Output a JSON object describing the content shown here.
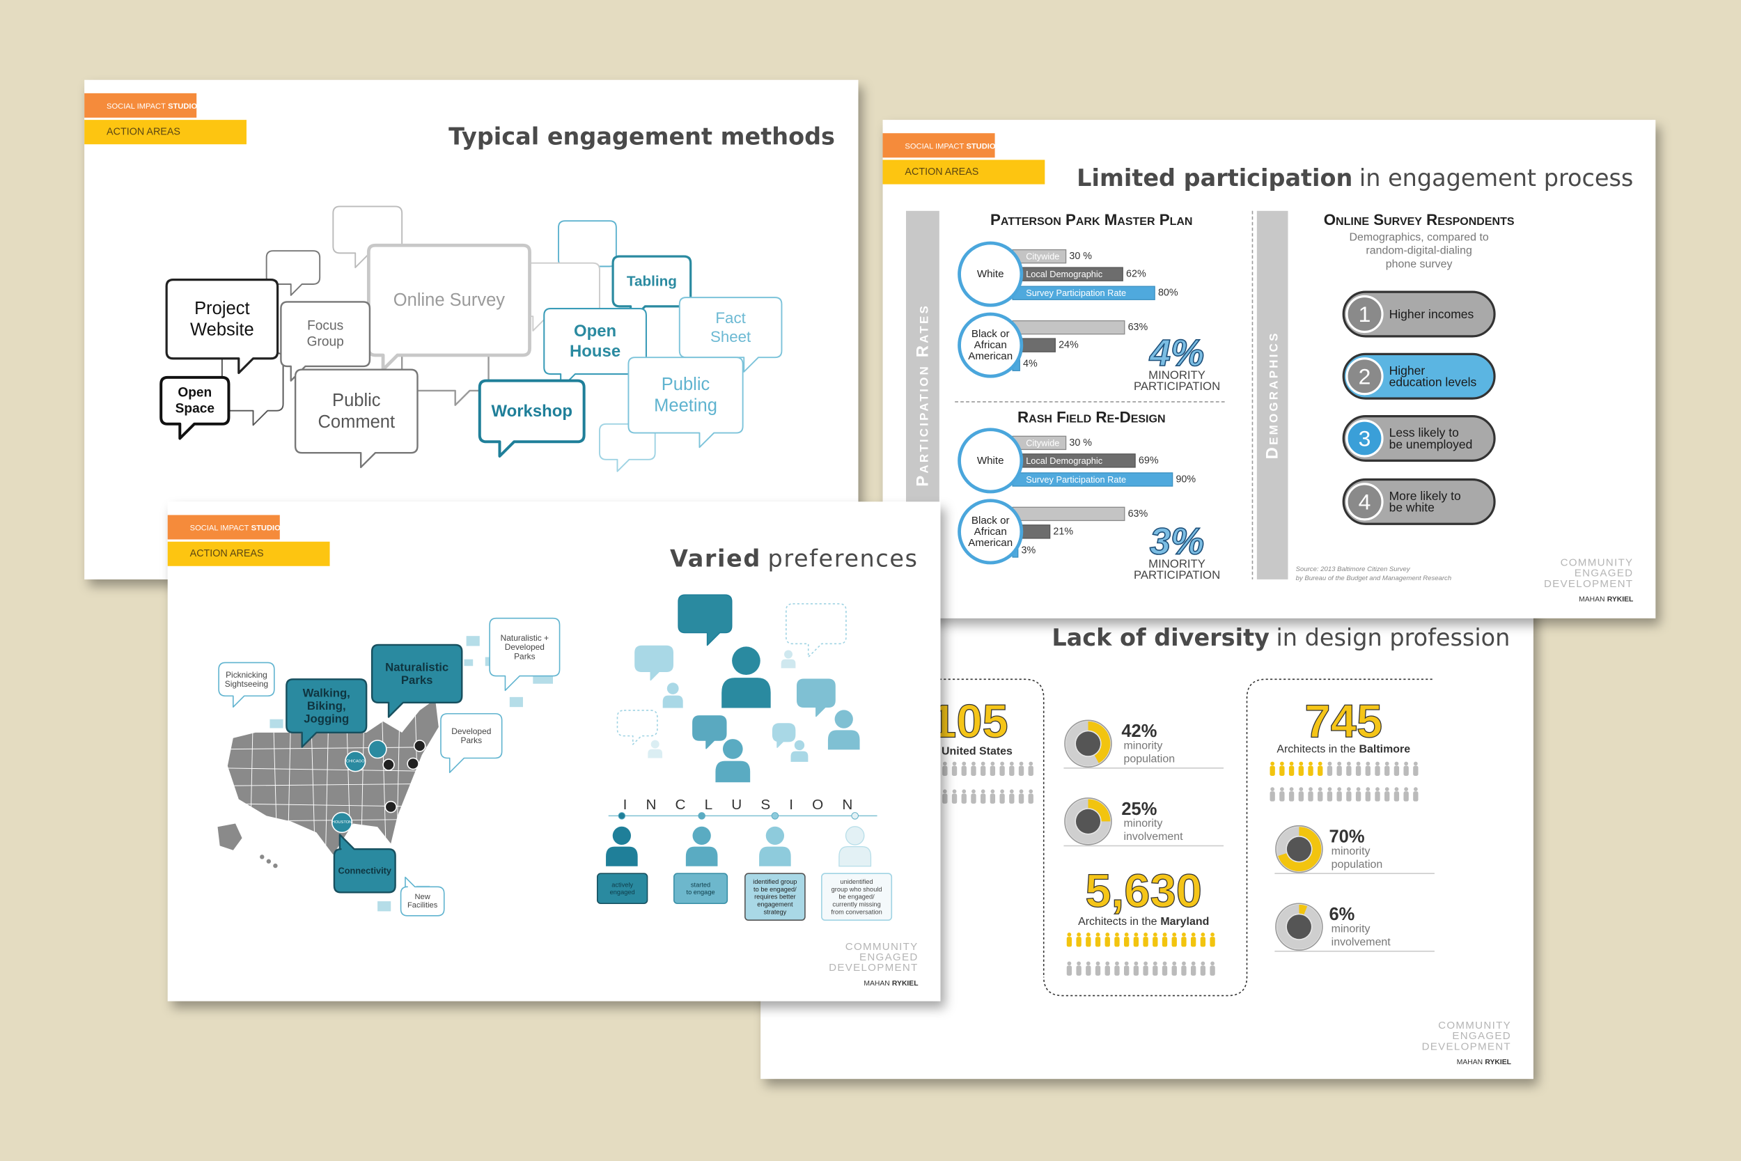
{
  "brand": {
    "studio_prefix": "SOCIAL IMPACT",
    "studio_bold": "STUDIO",
    "section": "ACTION AREAS",
    "logo_lines": [
      "COMMUNITY",
      "ENGAGED",
      "DEVELOPMENT"
    ],
    "firm_prefix": "MAHAN",
    "firm_bold": "RYKIEL"
  },
  "engagement_methods": {
    "title": "Typical engagement methods",
    "methods": [
      {
        "lines": [
          "Online Survey"
        ]
      },
      {
        "lines": [
          "Tabling"
        ]
      },
      {
        "lines": [
          "Fact",
          "Sheet"
        ]
      },
      {
        "lines": [
          "Open",
          "House"
        ]
      },
      {
        "lines": [
          "Public",
          "Meeting"
        ]
      },
      {
        "lines": [
          "Focus",
          "Group"
        ]
      },
      {
        "lines": [
          "Project",
          "Website"
        ]
      },
      {
        "lines": [
          "Public",
          "Comment"
        ]
      },
      {
        "lines": [
          "Open",
          "Space"
        ]
      },
      {
        "lines": [
          "Workshop"
        ]
      }
    ]
  },
  "limited_participation": {
    "title_bold": "Limited participation",
    "title_rest": "in engagement process",
    "side_label": "Participation Rates",
    "projects": [
      {
        "name": "Patterson Park Master Plan",
        "groups": [
          {
            "name": [
              "White"
            ],
            "bars": [
              {
                "label": "Citywide",
                "value": 30,
                "value_label": "30 %"
              },
              {
                "label": "Local Demographic",
                "value": 62,
                "value_label": "62%"
              },
              {
                "label": "Survey Participation Rate",
                "value": 80,
                "value_label": "80%"
              }
            ]
          },
          {
            "name": [
              "Black or",
              "African",
              "American"
            ],
            "bars": [
              {
                "value": 63,
                "value_label": "63%"
              },
              {
                "value": 24,
                "value_label": "24%"
              },
              {
                "value": 4,
                "value_label": "4%"
              }
            ]
          }
        ],
        "minority": {
          "label": "4%",
          "lines": [
            "MINORITY",
            "PARTICIPATION"
          ]
        }
      },
      {
        "name": "Rash Field Re-Design",
        "groups": [
          {
            "name": [
              "White"
            ],
            "bars": [
              {
                "label": "Citywide",
                "value": 30,
                "value_label": "30 %"
              },
              {
                "label": "Local Demographic",
                "value": 69,
                "value_label": "69%"
              },
              {
                "label": "Survey Participation Rate",
                "value": 90,
                "value_label": "90%"
              }
            ]
          },
          {
            "name": [
              "Black or",
              "African",
              "American"
            ],
            "bars": [
              {
                "value": 63,
                "value_label": "63%"
              },
              {
                "value": 21,
                "value_label": "21%"
              },
              {
                "value": 3,
                "value_label": "3%"
              }
            ]
          }
        ],
        "minority": {
          "label": "3%",
          "lines": [
            "MINORITY",
            "PARTICIPATION"
          ]
        }
      }
    ],
    "demographics_label": "Demographics",
    "survey_title": "Online Survey Respondents",
    "survey_subtitle": [
      "Demographics, compared to",
      "random-digital-dialing",
      "phone survey"
    ],
    "findings": [
      {
        "number": "1",
        "lines": [
          "Higher incomes"
        ]
      },
      {
        "number": "2",
        "lines": [
          "Higher",
          "education levels"
        ]
      },
      {
        "number": "3",
        "lines": [
          "Less likely to",
          "be unemployed"
        ]
      },
      {
        "number": "4",
        "lines": [
          "More likely to",
          "be white"
        ]
      }
    ],
    "source": [
      "Source: 2013 Baltimore Citizen Survey",
      "by Bureau of the Budget and Management Research"
    ]
  },
  "lack_of_diversity": {
    "title_bold": "Lack of diversity",
    "title_rest": "in design profession",
    "national": {
      "number": "105",
      "place": "United States"
    },
    "maryland": {
      "number": "5,630",
      "prefix": "Architects in the",
      "place": "Maryland",
      "shares": [
        {
          "value": 42,
          "label": "42%",
          "caption": [
            "minority",
            "population"
          ]
        },
        {
          "value": 25,
          "label": "25%",
          "caption": [
            "minority",
            "involvement"
          ]
        }
      ]
    },
    "baltimore": {
      "number": "745",
      "prefix": "Architects in the",
      "place": "Baltimore",
      "shares": [
        {
          "value": 70,
          "label": "70%",
          "caption": [
            "minority",
            "population"
          ]
        },
        {
          "value": 6,
          "label": "6%",
          "caption": [
            "minority",
            "involvement"
          ]
        }
      ]
    }
  },
  "varied_preferences": {
    "title_bold": "Varied",
    "title_rest": "preferences",
    "map_labels": [
      {
        "lines": [
          "Picknicking",
          "Sightseeing"
        ]
      },
      {
        "lines": [
          "Walking,",
          "Biking,",
          "Jogging"
        ]
      },
      {
        "lines": [
          "Naturalistic",
          "Parks"
        ]
      },
      {
        "lines": [
          "Naturalistic +",
          "Developed",
          "Parks"
        ]
      },
      {
        "lines": [
          "Developed",
          "Parks"
        ]
      },
      {
        "lines": [
          "Connectivity"
        ]
      },
      {
        "lines": [
          "New",
          "Facilities"
        ]
      }
    ],
    "cities": [
      "CHICAGO",
      "HOUSTON"
    ],
    "inclusion": "INCLUSION",
    "stages": [
      {
        "lines": [
          "actively",
          "engaged"
        ]
      },
      {
        "lines": [
          "started",
          "to engage"
        ]
      },
      {
        "lines": [
          "identified group",
          "to be engaged/",
          "requires better",
          "engagement",
          "strategy"
        ]
      },
      {
        "lines": [
          "unidentified",
          "group who should",
          "be engaged/",
          "currently missing",
          "from conversation"
        ]
      }
    ]
  }
}
